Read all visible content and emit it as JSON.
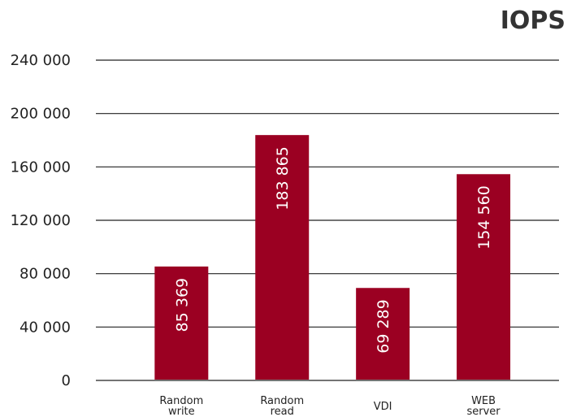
{
  "chart_data": {
    "type": "bar",
    "title": "IOPS",
    "categories": [
      [
        "Random",
        "write"
      ],
      [
        "Random",
        "read"
      ],
      [
        "VDI"
      ],
      [
        "WEB",
        "server"
      ]
    ],
    "values": [
      85369,
      183865,
      69289,
      154560
    ],
    "data_labels": [
      "85 369",
      "183 865",
      "69 289",
      "154 560"
    ],
    "ylim": [
      0,
      240000
    ],
    "yticks": [
      0,
      40000,
      80000,
      120000,
      160000,
      200000,
      240000
    ],
    "ytick_labels": [
      "0",
      "40 000",
      "80 000",
      "120 000",
      "160 000",
      "200 000",
      "240 000"
    ],
    "grid": true,
    "bar_color": "#9b0022",
    "grid_color": "#222222"
  }
}
